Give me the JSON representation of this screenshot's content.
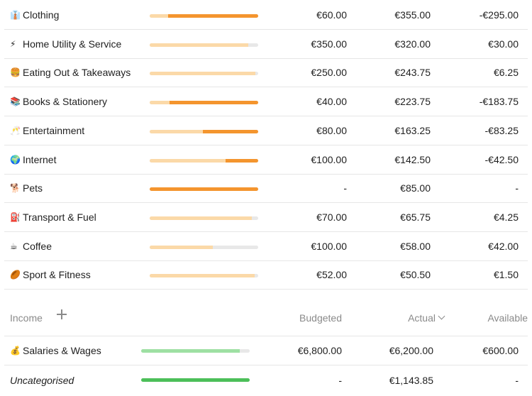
{
  "expenses": [
    {
      "emoji": "👔",
      "name": "Clothing",
      "budgeted": "€60.00",
      "actual": "€355.00",
      "available": "-€295.00",
      "light": 0.17,
      "dark": 0.83
    },
    {
      "emoji": "⚡",
      "name": "Home Utility & Service",
      "budgeted": "€350.00",
      "actual": "€320.00",
      "available": "€30.00",
      "light": 0.91,
      "dark": 0
    },
    {
      "emoji": "🍔",
      "name": "Eating Out & Takeaways",
      "budgeted": "€250.00",
      "actual": "€243.75",
      "available": "€6.25",
      "light": 0.975,
      "dark": 0
    },
    {
      "emoji": "📚",
      "name": "Books & Stationery",
      "budgeted": "€40.00",
      "actual": "€223.75",
      "available": "-€183.75",
      "light": 0.18,
      "dark": 0.82
    },
    {
      "emoji": "🥂",
      "name": "Entertainment",
      "budgeted": "€80.00",
      "actual": "€163.25",
      "available": "-€83.25",
      "light": 0.49,
      "dark": 0.51
    },
    {
      "emoji": "🌍",
      "name": "Internet",
      "budgeted": "€100.00",
      "actual": "€142.50",
      "available": "-€42.50",
      "light": 0.7,
      "dark": 0.3
    },
    {
      "emoji": "🐕",
      "name": "Pets",
      "budgeted": "-",
      "actual": "€85.00",
      "available": "-",
      "light": 0,
      "dark": 1
    },
    {
      "emoji": "⛽",
      "name": "Transport & Fuel",
      "budgeted": "€70.00",
      "actual": "€65.75",
      "available": "€4.25",
      "light": 0.94,
      "dark": 0
    },
    {
      "emoji": "☕",
      "name": "Coffee",
      "budgeted": "€100.00",
      "actual": "€58.00",
      "available": "€42.00",
      "light": 0.58,
      "dark": 0
    },
    {
      "emoji": "🏉",
      "name": "Sport & Fitness",
      "budgeted": "€52.00",
      "actual": "€50.50",
      "available": "€1.50",
      "light": 0.97,
      "dark": 0
    }
  ],
  "income_header": {
    "title": "Income",
    "budgeted": "Budgeted",
    "actual": "Actual",
    "available": "Available"
  },
  "income": [
    {
      "emoji": "💰",
      "name": "Salaries & Wages",
      "budgeted": "€6,800.00",
      "actual": "€6,200.00",
      "available": "€600.00",
      "fill": 0.91,
      "color": "#9ee0a3",
      "italic": false
    },
    {
      "emoji": "",
      "name": "Uncategorised",
      "budgeted": "-",
      "actual": "€1,143.85",
      "available": "-",
      "fill": 1,
      "color": "#4cbf59",
      "italic": true
    }
  ],
  "colors": {
    "over_budget": "#f4952e",
    "spent": "#fbd9a8",
    "track": "#e8e8e8"
  }
}
